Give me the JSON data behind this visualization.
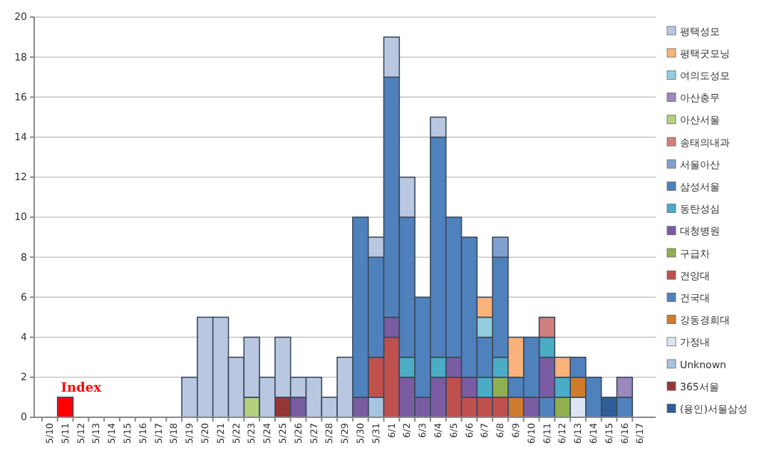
{
  "chart_data": {
    "type": "bar",
    "stacked": true,
    "grid": "y",
    "legend": "right",
    "categories": [
      "5/10",
      "5/11",
      "5/12",
      "5/13",
      "5/14",
      "5/15",
      "5/16",
      "5/17",
      "5/18",
      "5/19",
      "5/20",
      "5/21",
      "5/22",
      "5/23",
      "5/24",
      "5/25",
      "5/26",
      "5/27",
      "5/28",
      "5/29",
      "5/30",
      "5/31",
      "6/1",
      "6/2",
      "6/3",
      "6/4",
      "6/5",
      "6/6",
      "6/7",
      "6/8",
      "6/9",
      "6/10",
      "6/11",
      "6/12",
      "6/13",
      "6/14",
      "6/15",
      "6/16",
      "6/17"
    ],
    "ylim": [
      0,
      20
    ],
    "yticks": [
      0,
      2,
      4,
      6,
      8,
      10,
      12,
      14,
      16,
      18,
      20
    ],
    "annotations": [
      {
        "text": "Index",
        "x": "5/11",
        "y": 1
      }
    ],
    "series": [
      {
        "color": "#ff0000",
        "values": [
          null,
          1,
          null,
          null,
          null,
          null,
          null,
          null,
          null,
          null,
          null,
          null,
          null,
          null,
          null,
          null,
          null,
          null,
          null,
          null,
          null,
          null,
          null,
          null,
          null,
          null,
          null,
          null,
          null,
          null,
          null,
          null,
          null,
          null,
          null,
          null,
          null,
          null,
          null
        ]
      },
      {
        "name": "(용인)서울삼성",
        "color": "#2f5d95",
        "values": [
          null,
          null,
          null,
          null,
          null,
          null,
          null,
          null,
          null,
          null,
          null,
          null,
          null,
          null,
          null,
          null,
          null,
          null,
          null,
          null,
          null,
          null,
          null,
          null,
          null,
          null,
          null,
          null,
          null,
          null,
          null,
          null,
          null,
          null,
          null,
          null,
          1,
          null,
          null
        ]
      },
      {
        "name": "365서울",
        "color": "#953735",
        "values": [
          null,
          null,
          null,
          null,
          null,
          null,
          null,
          null,
          null,
          null,
          null,
          null,
          null,
          null,
          null,
          1,
          null,
          null,
          null,
          null,
          null,
          null,
          null,
          null,
          null,
          null,
          null,
          null,
          null,
          null,
          null,
          null,
          null,
          null,
          null,
          null,
          null,
          null,
          null
        ]
      },
      {
        "name": "Unknown",
        "color": "#a8c4e0",
        "values": [
          null,
          null,
          null,
          null,
          null,
          null,
          null,
          null,
          null,
          null,
          null,
          null,
          null,
          null,
          null,
          null,
          null,
          null,
          null,
          null,
          null,
          1,
          null,
          null,
          null,
          null,
          null,
          null,
          null,
          null,
          null,
          null,
          null,
          null,
          null,
          null,
          null,
          null,
          null
        ]
      },
      {
        "name": "가정내",
        "color": "#dce6f2",
        "values": [
          null,
          null,
          null,
          null,
          null,
          null,
          null,
          null,
          null,
          null,
          null,
          null,
          null,
          null,
          null,
          null,
          null,
          null,
          null,
          null,
          null,
          null,
          null,
          null,
          null,
          null,
          null,
          null,
          null,
          null,
          null,
          null,
          null,
          null,
          1,
          null,
          null,
          null,
          null
        ]
      },
      {
        "name": "강동경희대",
        "color": "#d07b2b",
        "values": [
          null,
          null,
          null,
          null,
          null,
          null,
          null,
          null,
          null,
          null,
          null,
          null,
          null,
          null,
          null,
          null,
          null,
          null,
          null,
          null,
          null,
          null,
          null,
          null,
          null,
          null,
          null,
          null,
          null,
          null,
          1,
          null,
          null,
          null,
          1,
          null,
          null,
          null,
          null
        ]
      },
      {
        "name": "건국대",
        "color": "#4f81bd",
        "values": [
          null,
          null,
          null,
          null,
          null,
          null,
          null,
          null,
          null,
          null,
          null,
          null,
          null,
          null,
          null,
          null,
          null,
          null,
          null,
          null,
          null,
          null,
          null,
          null,
          null,
          null,
          null,
          null,
          null,
          null,
          null,
          null,
          1,
          null,
          null,
          null,
          null,
          1,
          null
        ]
      },
      {
        "name": "건양대",
        "color": "#c0504d",
        "values": [
          null,
          null,
          null,
          null,
          null,
          null,
          null,
          null,
          null,
          null,
          null,
          null,
          null,
          null,
          null,
          null,
          null,
          null,
          null,
          null,
          null,
          2,
          4,
          null,
          null,
          null,
          2,
          1,
          1,
          1,
          null,
          null,
          null,
          null,
          null,
          null,
          null,
          null,
          null
        ]
      },
      {
        "name": "구급차",
        "color": "#8fb04f",
        "values": [
          null,
          null,
          null,
          null,
          null,
          null,
          null,
          null,
          null,
          null,
          null,
          null,
          null,
          null,
          null,
          null,
          null,
          null,
          null,
          null,
          null,
          null,
          null,
          null,
          null,
          null,
          null,
          null,
          null,
          1,
          null,
          null,
          null,
          1,
          null,
          null,
          null,
          null,
          null
        ]
      },
      {
        "name": "대청병원",
        "color": "#7a5ca3",
        "values": [
          null,
          null,
          null,
          null,
          null,
          null,
          null,
          null,
          null,
          null,
          null,
          null,
          null,
          null,
          null,
          null,
          1,
          null,
          null,
          null,
          1,
          null,
          1,
          2,
          1,
          2,
          1,
          1,
          null,
          null,
          null,
          1,
          2,
          null,
          null,
          null,
          null,
          null,
          null
        ]
      },
      {
        "name": "동탄성심",
        "color": "#4bacc6",
        "values": [
          null,
          null,
          null,
          null,
          null,
          null,
          null,
          null,
          null,
          null,
          null,
          null,
          null,
          null,
          null,
          null,
          null,
          null,
          null,
          null,
          null,
          null,
          null,
          1,
          null,
          1,
          null,
          null,
          1,
          1,
          null,
          null,
          1,
          1,
          null,
          null,
          null,
          null,
          null
        ]
      },
      {
        "name": "삼성서울",
        "color": "#4f81bd",
        "values": [
          null,
          null,
          null,
          null,
          null,
          null,
          null,
          null,
          null,
          null,
          null,
          null,
          null,
          null,
          null,
          null,
          null,
          null,
          null,
          null,
          9,
          5,
          12,
          7,
          5,
          11,
          7,
          7,
          2,
          5,
          1,
          3,
          null,
          null,
          1,
          2,
          null,
          null,
          null
        ]
      },
      {
        "name": "서울아산",
        "color": "#7f9fcf",
        "values": [
          null,
          null,
          null,
          null,
          null,
          null,
          null,
          null,
          null,
          null,
          null,
          null,
          null,
          null,
          null,
          null,
          null,
          null,
          null,
          null,
          null,
          null,
          null,
          null,
          null,
          null,
          null,
          null,
          null,
          1,
          null,
          null,
          null,
          null,
          null,
          null,
          null,
          null,
          null
        ]
      },
      {
        "name": "송태의내과",
        "color": "#d27f7c",
        "values": [
          null,
          null,
          null,
          null,
          null,
          null,
          null,
          null,
          null,
          null,
          null,
          null,
          null,
          null,
          null,
          null,
          null,
          null,
          null,
          null,
          null,
          null,
          null,
          null,
          null,
          null,
          null,
          null,
          null,
          null,
          null,
          null,
          1,
          null,
          null,
          null,
          null,
          null,
          null
        ]
      },
      {
        "name": "아산서울",
        "color": "#b5cf7f",
        "values": [
          null,
          null,
          null,
          null,
          null,
          null,
          null,
          null,
          null,
          null,
          null,
          null,
          null,
          1,
          null,
          null,
          null,
          null,
          null,
          null,
          null,
          null,
          null,
          null,
          null,
          null,
          null,
          null,
          null,
          null,
          null,
          null,
          null,
          null,
          null,
          null,
          null,
          null,
          null
        ]
      },
      {
        "name": "아산충무",
        "color": "#9b88bd",
        "values": [
          null,
          null,
          null,
          null,
          null,
          null,
          null,
          null,
          null,
          null,
          null,
          null,
          null,
          null,
          null,
          null,
          null,
          null,
          null,
          null,
          null,
          null,
          null,
          null,
          null,
          null,
          null,
          null,
          null,
          null,
          null,
          null,
          null,
          null,
          null,
          null,
          null,
          1,
          null
        ]
      },
      {
        "name": "여의도성모",
        "color": "#93cddd",
        "values": [
          null,
          null,
          null,
          null,
          null,
          null,
          null,
          null,
          null,
          null,
          null,
          null,
          null,
          null,
          null,
          null,
          null,
          null,
          null,
          null,
          null,
          null,
          null,
          null,
          null,
          null,
          null,
          null,
          1,
          null,
          null,
          null,
          null,
          null,
          null,
          null,
          null,
          null,
          null
        ]
      },
      {
        "name": "평택굿모닝",
        "color": "#f9b27a",
        "values": [
          null,
          null,
          null,
          null,
          null,
          null,
          null,
          null,
          null,
          null,
          null,
          null,
          null,
          null,
          null,
          null,
          null,
          null,
          null,
          null,
          null,
          null,
          null,
          null,
          null,
          null,
          null,
          null,
          1,
          null,
          2,
          null,
          null,
          1,
          null,
          null,
          null,
          null,
          null
        ]
      },
      {
        "name": "평택성모",
        "color": "#b9c7e0",
        "values": [
          null,
          null,
          null,
          null,
          null,
          null,
          null,
          null,
          null,
          2,
          5,
          5,
          3,
          3,
          2,
          3,
          1,
          2,
          1,
          3,
          null,
          1,
          2,
          2,
          null,
          1,
          null,
          null,
          null,
          null,
          null,
          null,
          null,
          null,
          null,
          null,
          null,
          null,
          null
        ]
      }
    ]
  }
}
